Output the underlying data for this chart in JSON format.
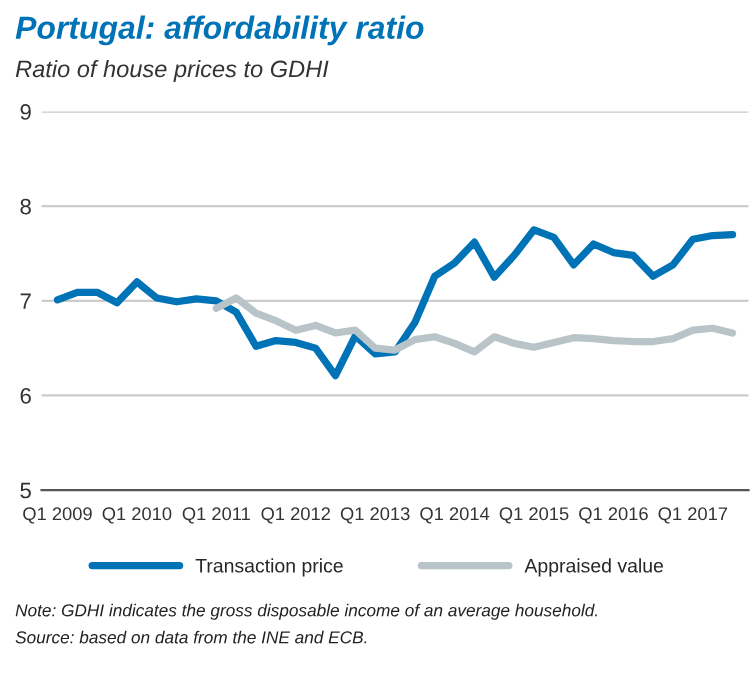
{
  "chart_data": {
    "type": "line",
    "title": "Portugal: affordability ratio",
    "subtitle": "Ratio of house prices to GDHI",
    "categories": [
      "Q1 2009",
      null,
      null,
      null,
      "Q1 2010",
      null,
      null,
      null,
      "Q1 2011",
      null,
      null,
      null,
      "Q1 2012",
      null,
      null,
      null,
      "Q1 2013",
      null,
      null,
      null,
      "Q1 2014",
      null,
      null,
      null,
      "Q1 2015",
      null,
      null,
      null,
      "Q1 2016",
      null,
      null,
      null,
      "Q1 2017",
      null,
      null
    ],
    "series": [
      {
        "name": "Transaction price",
        "color": "#0073b7",
        "values": [
          7.01,
          7.09,
          7.09,
          6.98,
          7.2,
          7.03,
          6.99,
          7.02,
          7.0,
          6.88,
          6.52,
          6.58,
          6.56,
          6.5,
          6.21,
          6.63,
          6.44,
          6.46,
          6.77,
          7.26,
          7.4,
          7.62,
          7.25,
          7.48,
          7.75,
          7.67,
          7.38,
          7.6,
          7.51,
          7.48,
          7.26,
          7.38,
          7.65,
          7.69,
          7.7
        ]
      },
      {
        "name": "Appraised value",
        "color": "#b8c4c8",
        "values": [
          null,
          null,
          null,
          null,
          null,
          null,
          null,
          null,
          6.92,
          7.03,
          6.87,
          6.79,
          6.69,
          6.74,
          6.66,
          6.69,
          6.5,
          6.48,
          6.59,
          6.62,
          6.55,
          6.46,
          6.62,
          6.55,
          6.51,
          6.56,
          6.61,
          6.6,
          6.58,
          6.57,
          6.57,
          6.6,
          6.69,
          6.71,
          6.66
        ]
      }
    ],
    "ylim": [
      5,
      9
    ],
    "yticks": [
      5,
      6,
      7,
      8,
      9
    ],
    "grid": "y",
    "legend": "bottom",
    "annotations": [
      "Note: GDHI indicates the gross disposable income of an average household.",
      "Source: based on data from the INE and ECB."
    ]
  }
}
